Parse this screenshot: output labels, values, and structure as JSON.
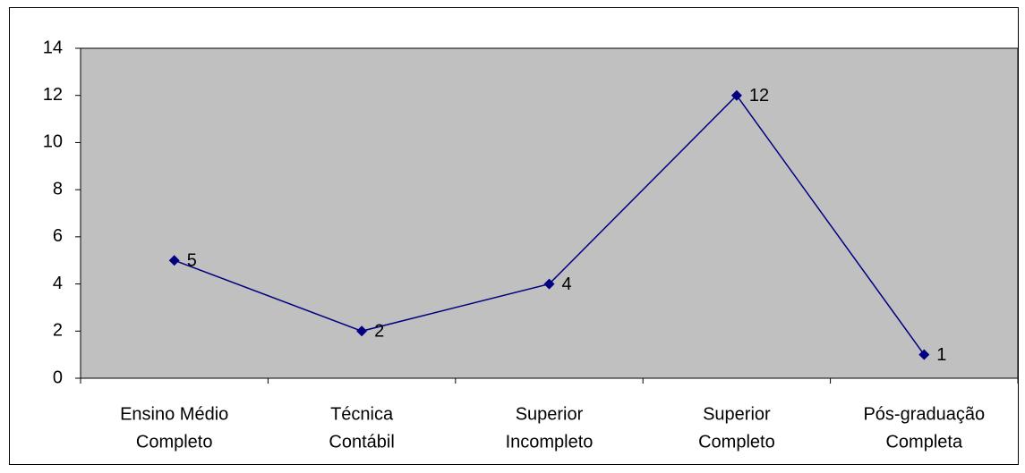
{
  "chart_data": {
    "type": "line",
    "categories": [
      [
        "Ensino Médio",
        "Completo"
      ],
      [
        "Técnica",
        "Contábil"
      ],
      [
        "Superior",
        "Incompleto"
      ],
      [
        "Superior",
        "Completo"
      ],
      [
        "Pós-graduação",
        "Completa"
      ]
    ],
    "series": [
      {
        "color": "#000080",
        "values": [
          5,
          2,
          4,
          12,
          1
        ]
      }
    ],
    "ylim": [
      0,
      14
    ],
    "yticks": [
      0,
      2,
      4,
      6,
      8,
      10,
      12,
      14
    ],
    "grid": false,
    "plot_background": "#c0c0c0"
  }
}
